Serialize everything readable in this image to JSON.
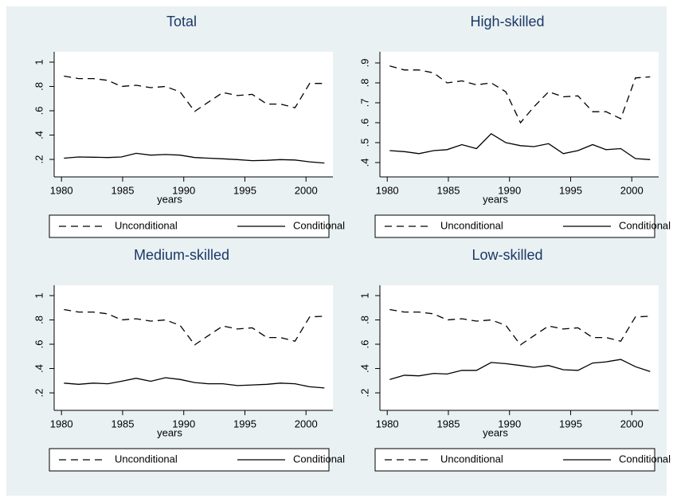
{
  "chart_data": [
    {
      "type": "line",
      "title": "Total",
      "xlabel": "years",
      "x": [
        1980.2,
        1981.4,
        1982.6,
        1983.8,
        1984.9,
        1986.1,
        1987.3,
        1988.5,
        1989.7,
        1990.9,
        1992.0,
        1993.2,
        1994.4,
        1995.6,
        1996.8,
        1997.9,
        1999.1,
        2000.3,
        2001.5
      ],
      "xlim": [
        1979.4,
        2002.2
      ],
      "xticks": [
        1980,
        1985,
        1990,
        1995,
        2000
      ],
      "ylim": [
        0.056,
        1.085
      ],
      "yticks": [
        {
          "value": 0.2,
          "label": ".2"
        },
        {
          "value": 0.4,
          "label": ".4"
        },
        {
          "value": 0.6,
          "label": ".6"
        },
        {
          "value": 0.8,
          "label": ".8"
        },
        1
      ],
      "series": [
        {
          "name": "Unconditional",
          "color": "#000000",
          "line_style": "dashed",
          "values": [
            0.885,
            0.865,
            0.865,
            0.85,
            0.8,
            0.81,
            0.79,
            0.8,
            0.755,
            0.595,
            0.67,
            0.75,
            0.725,
            0.735,
            0.655,
            0.655,
            0.625,
            0.825,
            0.825
          ]
        },
        {
          "name": "Conditional",
          "color": "#000000",
          "line_style": "solid",
          "values": [
            0.21,
            0.22,
            0.218,
            0.215,
            0.22,
            0.25,
            0.235,
            0.24,
            0.235,
            0.215,
            0.21,
            0.205,
            0.198,
            0.19,
            0.192,
            0.198,
            0.195,
            0.18,
            0.17
          ]
        }
      ]
    },
    {
      "type": "line",
      "title": "High-skilled",
      "xlabel": "years",
      "x": [
        1980.2,
        1981.4,
        1982.6,
        1983.8,
        1984.9,
        1986.1,
        1987.3,
        1988.5,
        1989.7,
        1990.9,
        1992.0,
        1993.2,
        1994.4,
        1995.6,
        1996.8,
        1997.9,
        1999.1,
        2000.3,
        2001.5
      ],
      "xlim": [
        1979.4,
        2002.2
      ],
      "xticks": [
        1980,
        1985,
        1990,
        1995,
        2000
      ],
      "ylim": [
        0.328,
        0.956
      ],
      "yticks": [
        {
          "value": 0.4,
          "label": ".4"
        },
        {
          "value": 0.5,
          "label": ".5"
        },
        {
          "value": 0.6,
          "label": ".6"
        },
        {
          "value": 0.7,
          "label": ".7"
        },
        {
          "value": 0.8,
          "label": ".8"
        },
        {
          "value": 0.9,
          "label": ".9"
        }
      ],
      "series": [
        {
          "name": "Unconditional",
          "color": "#000000",
          "line_style": "dashed",
          "values": [
            0.885,
            0.865,
            0.865,
            0.85,
            0.8,
            0.81,
            0.79,
            0.8,
            0.755,
            0.6,
            0.68,
            0.755,
            0.73,
            0.735,
            0.655,
            0.655,
            0.62,
            0.825,
            0.83
          ]
        },
        {
          "name": "Conditional",
          "color": "#000000",
          "line_style": "solid",
          "values": [
            0.46,
            0.455,
            0.445,
            0.46,
            0.465,
            0.49,
            0.47,
            0.545,
            0.5,
            0.485,
            0.48,
            0.495,
            0.445,
            0.46,
            0.49,
            0.465,
            0.47,
            0.42,
            0.415
          ]
        }
      ]
    },
    {
      "type": "line",
      "title": "Medium-skilled",
      "xlabel": "years",
      "x": [
        1980.2,
        1981.4,
        1982.6,
        1983.8,
        1984.9,
        1986.1,
        1987.3,
        1988.5,
        1989.7,
        1990.9,
        1992.0,
        1993.2,
        1994.4,
        1995.6,
        1996.8,
        1997.9,
        1999.1,
        2000.3,
        2001.5
      ],
      "xlim": [
        1979.4,
        2002.2
      ],
      "xticks": [
        1980,
        1985,
        1990,
        1995,
        2000
      ],
      "ylim": [
        0.056,
        1.085
      ],
      "yticks": [
        {
          "value": 0.2,
          "label": ".2"
        },
        {
          "value": 0.4,
          "label": ".4"
        },
        {
          "value": 0.6,
          "label": ".6"
        },
        {
          "value": 0.8,
          "label": ".8"
        },
        1
      ],
      "series": [
        {
          "name": "Unconditional",
          "color": "#000000",
          "line_style": "dashed",
          "values": [
            0.885,
            0.865,
            0.865,
            0.85,
            0.8,
            0.81,
            0.79,
            0.8,
            0.755,
            0.595,
            0.67,
            0.75,
            0.725,
            0.735,
            0.655,
            0.655,
            0.625,
            0.825,
            0.83
          ]
        },
        {
          "name": "Conditional",
          "color": "#000000",
          "line_style": "solid",
          "values": [
            0.28,
            0.27,
            0.28,
            0.275,
            0.295,
            0.32,
            0.295,
            0.325,
            0.31,
            0.285,
            0.275,
            0.275,
            0.26,
            0.265,
            0.27,
            0.28,
            0.275,
            0.25,
            0.24
          ]
        }
      ]
    },
    {
      "type": "line",
      "title": "Low-skilled",
      "xlabel": "years",
      "x": [
        1980.2,
        1981.4,
        1982.6,
        1983.8,
        1984.9,
        1986.1,
        1987.3,
        1988.5,
        1989.7,
        1990.9,
        1992.0,
        1993.2,
        1994.4,
        1995.6,
        1996.8,
        1997.9,
        1999.1,
        2000.3,
        2001.5
      ],
      "xlim": [
        1979.4,
        2002.2
      ],
      "xticks": [
        1980,
        1985,
        1990,
        1995,
        2000
      ],
      "ylim": [
        0.056,
        1.085
      ],
      "yticks": [
        {
          "value": 0.2,
          "label": ".2"
        },
        {
          "value": 0.4,
          "label": ".4"
        },
        {
          "value": 0.6,
          "label": ".6"
        },
        {
          "value": 0.8,
          "label": ".8"
        },
        1
      ],
      "series": [
        {
          "name": "Unconditional",
          "color": "#000000",
          "line_style": "dashed",
          "values": [
            0.885,
            0.865,
            0.865,
            0.85,
            0.8,
            0.81,
            0.79,
            0.8,
            0.755,
            0.595,
            0.67,
            0.75,
            0.725,
            0.735,
            0.655,
            0.655,
            0.625,
            0.825,
            0.83
          ]
        },
        {
          "name": "Conditional",
          "color": "#000000",
          "line_style": "solid",
          "values": [
            0.31,
            0.345,
            0.34,
            0.36,
            0.355,
            0.385,
            0.385,
            0.45,
            0.44,
            0.425,
            0.41,
            0.425,
            0.39,
            0.385,
            0.445,
            0.455,
            0.475,
            0.415,
            0.375
          ]
        }
      ]
    }
  ]
}
